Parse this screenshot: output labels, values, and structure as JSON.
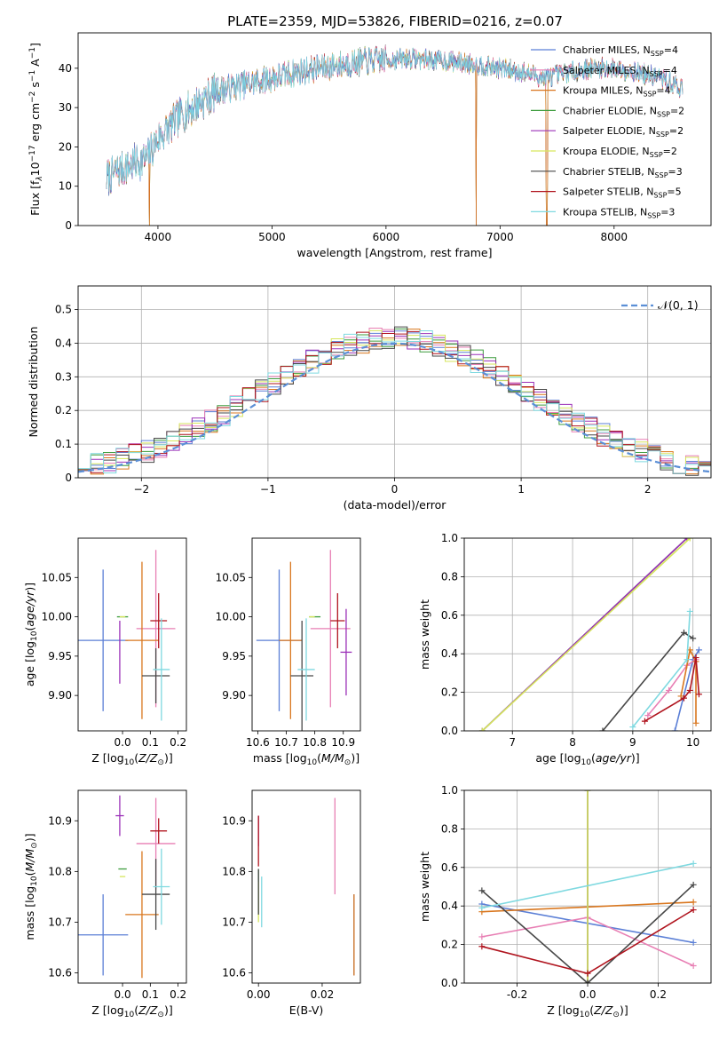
{
  "page_title": "PLATE=2359, MJD=53826, FIBERID=0216, z=0.07",
  "series_styles": [
    {
      "name": "Chabrier MILES, N_SSP=4",
      "base": "Chabrier MILES, N",
      "sub": "SSP",
      "tail": "=4",
      "color": "#5b7fd6"
    },
    {
      "name": "Salpeter MILES, N_SSP=4",
      "base": "Salpeter MILES, N",
      "sub": "SSP",
      "tail": "=4",
      "color": "#e87fb4"
    },
    {
      "name": "Kroupa MILES, N_SSP=4",
      "base": "Kroupa MILES, N",
      "sub": "SSP",
      "tail": "=4",
      "color": "#d9771f"
    },
    {
      "name": "Chabrier ELODIE, N_SSP=2",
      "base": "Chabrier ELODIE, N",
      "sub": "SSP",
      "tail": "=2",
      "color": "#3d9c3d"
    },
    {
      "name": "Salpeter ELODIE, N_SSP=2",
      "base": "Salpeter ELODIE, N",
      "sub": "SSP",
      "tail": "=2",
      "color": "#9b30b8"
    },
    {
      "name": "Kroupa ELODIE, N_SSP=2",
      "base": "Kroupa ELODIE, N",
      "sub": "SSP",
      "tail": "=2",
      "color": "#d6e65c"
    },
    {
      "name": "Chabrier STELIB, N_SSP=3",
      "base": "Chabrier STELIB, N",
      "sub": "SSP",
      "tail": "=3",
      "color": "#474747"
    },
    {
      "name": "Salpeter STELIB, N_SSP=5",
      "base": "Salpeter STELIB, N",
      "sub": "SSP",
      "tail": "=5",
      "color": "#b0141e"
    },
    {
      "name": "Kroupa STELIB, N_SSP=3",
      "base": "Kroupa STELIB, N",
      "sub": "SSP",
      "tail": "=3",
      "color": "#7fd9e0"
    }
  ],
  "chart_data": [
    {
      "id": "spectrum",
      "type": "line",
      "xlabel": "wavelength [Angstrom, rest frame]",
      "ylabel": "Flux [f_λ 10^-17 erg cm^-2 s^-1 A^-1]",
      "ylabel_parts": {
        "a": "Flux [f",
        "b": "λ",
        "c": "10",
        "d": "−17",
        "e": " erg cm",
        "f": "−2",
        "g": " s",
        "h": "−1",
        "i": " A",
        "j": "−1",
        "k": "]"
      },
      "xlim": [
        3300,
        8850
      ],
      "ylim": [
        0,
        49
      ],
      "xticks": [
        4000,
        5000,
        6000,
        7000,
        8000
      ],
      "yticks": [
        0,
        10,
        20,
        30,
        40
      ],
      "continuum_nodes": [
        [
          3550,
          12
        ],
        [
          3650,
          14
        ],
        [
          3800,
          16
        ],
        [
          3900,
          17
        ],
        [
          4000,
          22
        ],
        [
          4100,
          25
        ],
        [
          4200,
          28
        ],
        [
          4350,
          31
        ],
        [
          4500,
          34
        ],
        [
          4700,
          35.5
        ],
        [
          5000,
          37.5
        ],
        [
          5300,
          39.5
        ],
        [
          5600,
          41
        ],
        [
          5900,
          42
        ],
        [
          6200,
          42.5
        ],
        [
          6500,
          42
        ],
        [
          6800,
          41
        ],
        [
          7000,
          40
        ],
        [
          7200,
          39
        ],
        [
          7400,
          37.5
        ],
        [
          7600,
          39
        ],
        [
          7800,
          40
        ],
        [
          8000,
          40
        ],
        [
          8200,
          39
        ],
        [
          8400,
          37.5
        ],
        [
          8600,
          35
        ]
      ],
      "dips": [
        [
          6790,
          0,
          3
        ],
        [
          7410,
          0,
          6
        ],
        [
          3925,
          0,
          5
        ]
      ],
      "legend_position": "upper-right"
    },
    {
      "id": "residuals",
      "type": "histogram",
      "xlabel": "(data-model)/error",
      "ylabel": "Normed distribution",
      "xlim": [
        -2.5,
        2.5
      ],
      "ylim": [
        0,
        0.57
      ],
      "xticks": [
        -2,
        -1,
        0,
        1,
        2
      ],
      "yticks": [
        0,
        0.1,
        0.2,
        0.3,
        0.4,
        0.5
      ],
      "bin_width": 0.1,
      "reference_curve": {
        "label": "𝒩(0, 1)",
        "mean": 0,
        "sigma": 1
      },
      "legend_position": "upper-right",
      "grid": true
    },
    {
      "id": "age_vs_Z",
      "type": "errorbar",
      "xlabel": "Z [log10(Z/Z⊙)]",
      "ylabel": "age  [log10(age/yr)]",
      "xlim": [
        -0.16,
        0.23
      ],
      "ylim": [
        9.855,
        10.1
      ],
      "xticks": [
        0,
        0.1,
        0.2
      ],
      "yticks": [
        9.9,
        9.95,
        10.0,
        10.05
      ],
      "points": [
        {
          "x": -0.07,
          "y": 9.97,
          "xerr": 0.09,
          "yerr": 0.09,
          "series": 0
        },
        {
          "x": 0.12,
          "y": 9.985,
          "xerr": 0.07,
          "yerr": 0.1,
          "series": 1
        },
        {
          "x": 0.07,
          "y": 9.97,
          "xerr": 0.06,
          "yerr": 0.1,
          "series": 2
        },
        {
          "x": 0.0,
          "y": 10.0,
          "xerr": 0.02,
          "yerr": 0.0,
          "series": 3
        },
        {
          "x": -0.01,
          "y": 9.955,
          "xerr": 0.0,
          "yerr": 0.04,
          "series": 4
        },
        {
          "x": 0.0,
          "y": 10.0,
          "xerr": 0.01,
          "yerr": 0.0,
          "series": 5
        },
        {
          "x": 0.12,
          "y": 9.925,
          "xerr": 0.05,
          "yerr": 0.035,
          "series": 6
        },
        {
          "x": 0.13,
          "y": 9.995,
          "xerr": 0.03,
          "yerr": 0.035,
          "series": 7
        },
        {
          "x": 0.14,
          "y": 9.933,
          "xerr": 0.03,
          "yerr": 0.065,
          "series": 8
        }
      ]
    },
    {
      "id": "age_vs_mass",
      "type": "errorbar",
      "xlabel": "mass [log10(M/M⊙)]",
      "ylabel": "",
      "xlim": [
        10.58,
        10.96
      ],
      "ylim": [
        9.855,
        10.1
      ],
      "xticks": [
        10.6,
        10.7,
        10.8,
        10.9
      ],
      "yticks": [
        9.9,
        9.95,
        10.0,
        10.05
      ],
      "points": [
        {
          "x": 10.675,
          "y": 9.97,
          "xerr": 0.08,
          "yerr": 0.09,
          "series": 0
        },
        {
          "x": 10.855,
          "y": 9.985,
          "xerr": 0.07,
          "yerr": 0.1,
          "series": 1
        },
        {
          "x": 10.715,
          "y": 9.97,
          "xerr": 0.04,
          "yerr": 0.1,
          "series": 2
        },
        {
          "x": 10.8,
          "y": 10.0,
          "xerr": 0.02,
          "yerr": 0.0,
          "series": 3
        },
        {
          "x": 10.91,
          "y": 9.955,
          "xerr": 0.02,
          "yerr": 0.055,
          "series": 4
        },
        {
          "x": 10.79,
          "y": 10.0,
          "xerr": 0.01,
          "yerr": 0.0,
          "series": 5
        },
        {
          "x": 10.755,
          "y": 9.925,
          "xerr": 0.04,
          "yerr": 0.07,
          "series": 6
        },
        {
          "x": 10.88,
          "y": 9.995,
          "xerr": 0.025,
          "yerr": 0.035,
          "series": 7
        },
        {
          "x": 10.77,
          "y": 9.933,
          "xerr": 0.03,
          "yerr": 0.065,
          "series": 8
        }
      ]
    },
    {
      "id": "weight_vs_age",
      "type": "line",
      "xlabel": "age  [log10(age/yr)]",
      "ylabel": "mass weight",
      "xlim": [
        6.2,
        10.3
      ],
      "ylim": [
        0,
        1
      ],
      "xticks": [
        7,
        8,
        9,
        10
      ],
      "yticks": [
        0,
        0.2,
        0.4,
        0.6,
        0.8,
        1.0
      ],
      "series": [
        {
          "series": 0,
          "points": [
            [
              9.7,
              0.0
            ],
            [
              10.0,
              0.37
            ],
            [
              10.1,
              0.42
            ]
          ]
        },
        {
          "series": 1,
          "points": [
            [
              9.25,
              0.08
            ],
            [
              9.6,
              0.21
            ],
            [
              9.9,
              0.34
            ],
            [
              10.05,
              0.37
            ]
          ]
        },
        {
          "series": 2,
          "points": [
            [
              9.8,
              0.18
            ],
            [
              9.95,
              0.42
            ],
            [
              10.05,
              0.36
            ],
            [
              10.05,
              0.04
            ]
          ]
        },
        {
          "series": 3,
          "points": [
            [
              6.5,
              0.0
            ],
            [
              9.9,
              1.0
            ]
          ]
        },
        {
          "series": 4,
          "points": [
            [
              6.5,
              0.0
            ],
            [
              9.9,
              1.0
            ]
          ]
        },
        {
          "series": 5,
          "points": [
            [
              6.5,
              0.0
            ],
            [
              9.95,
              1.0
            ]
          ]
        },
        {
          "series": 6,
          "points": [
            [
              8.5,
              0.0
            ],
            [
              9.85,
              0.51
            ],
            [
              10.0,
              0.48
            ]
          ]
        },
        {
          "series": 7,
          "points": [
            [
              9.2,
              0.05
            ],
            [
              9.85,
              0.17
            ],
            [
              9.95,
              0.21
            ],
            [
              10.05,
              0.38
            ],
            [
              10.1,
              0.19
            ]
          ]
        },
        {
          "series": 8,
          "points": [
            [
              9.0,
              0.02
            ],
            [
              9.9,
              0.37
            ],
            [
              9.95,
              0.62
            ]
          ]
        }
      ],
      "grid": true
    },
    {
      "id": "mass_vs_Z",
      "type": "errorbar",
      "xlabel": "Z [log10(Z/Z⊙)]",
      "ylabel": "mass [log10(M/M⊙)]",
      "xlim": [
        -0.16,
        0.23
      ],
      "ylim": [
        10.58,
        10.96
      ],
      "xticks": [
        0,
        0.1,
        0.2
      ],
      "yticks": [
        10.6,
        10.7,
        10.8,
        10.9
      ],
      "points": [
        {
          "x": -0.07,
          "y": 10.675,
          "xerr": 0.09,
          "yerr": 0.08,
          "series": 0
        },
        {
          "x": 0.12,
          "y": 10.855,
          "xerr": 0.07,
          "yerr": 0.09,
          "series": 1
        },
        {
          "x": 0.07,
          "y": 10.715,
          "xerr": 0.06,
          "yerr": 0.125,
          "series": 2
        },
        {
          "x": 0.0,
          "y": 10.805,
          "xerr": 0.015,
          "yerr": 0.0,
          "series": 3
        },
        {
          "x": -0.01,
          "y": 10.91,
          "xerr": 0.015,
          "yerr": 0.04,
          "series": 4
        },
        {
          "x": 0.0,
          "y": 10.79,
          "xerr": 0.01,
          "yerr": 0.0,
          "series": 5
        },
        {
          "x": 0.12,
          "y": 10.755,
          "xerr": 0.05,
          "yerr": 0.07,
          "series": 6
        },
        {
          "x": 0.13,
          "y": 10.88,
          "xerr": 0.03,
          "yerr": 0.025,
          "series": 7
        },
        {
          "x": 0.14,
          "y": 10.77,
          "xerr": 0.03,
          "yerr": 0.075,
          "series": 8
        }
      ]
    },
    {
      "id": "mass_vs_ebv",
      "type": "errorbar",
      "xlabel": "E(B-V)",
      "ylabel": "",
      "xlim": [
        -0.002,
        0.032
      ],
      "ylim": [
        10.58,
        10.96
      ],
      "xticks": [
        0.0,
        0.02
      ],
      "yticks": [
        10.6,
        10.7,
        10.8,
        10.9
      ],
      "points": [
        {
          "x": 0.03,
          "y": 10.675,
          "xerr": 0,
          "yerr": 0.08,
          "series": 0
        },
        {
          "x": 0.024,
          "y": 10.85,
          "xerr": 0,
          "yerr": 0.095,
          "series": 1
        },
        {
          "x": 0.03,
          "y": 10.675,
          "xerr": 0,
          "yerr": 0.08,
          "series": 2
        },
        {
          "x": 0.0,
          "y": 10.76,
          "xerr": 0,
          "yerr": 0.045,
          "series": 3
        },
        {
          "x": 0.0,
          "y": 10.88,
          "xerr": 0,
          "yerr": 0.03,
          "series": 4
        },
        {
          "x": 0.0,
          "y": 10.74,
          "xerr": 0,
          "yerr": 0.04,
          "series": 5
        },
        {
          "x": 0.0,
          "y": 10.76,
          "xerr": 0,
          "yerr": 0.045,
          "series": 6
        },
        {
          "x": 0.0,
          "y": 10.86,
          "xerr": 0,
          "yerr": 0.05,
          "series": 7
        },
        {
          "x": 0.001,
          "y": 10.74,
          "xerr": 0,
          "yerr": 0.05,
          "series": 8
        }
      ]
    },
    {
      "id": "weight_vs_Z",
      "type": "line",
      "xlabel": "Z [log10(Z/Z⊙)]",
      "ylabel": "mass weight",
      "xlim": [
        -0.35,
        0.35
      ],
      "ylim": [
        0,
        1
      ],
      "xticks": [
        -0.2,
        0.0,
        0.2
      ],
      "yticks": [
        0,
        0.2,
        0.4,
        0.6,
        0.8,
        1.0
      ],
      "series": [
        {
          "series": 0,
          "points": [
            [
              -0.3,
              0.41
            ],
            [
              0.3,
              0.21
            ]
          ]
        },
        {
          "series": 1,
          "points": [
            [
              -0.3,
              0.24
            ],
            [
              0.0,
              0.34
            ],
            [
              0.3,
              0.09
            ]
          ]
        },
        {
          "series": 2,
          "points": [
            [
              -0.3,
              0.37
            ],
            [
              0.3,
              0.42
            ]
          ]
        },
        {
          "series": 3,
          "points": [
            [
              0.0,
              0.0
            ],
            [
              0.0,
              1.0
            ]
          ]
        },
        {
          "series": 4,
          "points": [
            [
              0.0,
              0.0
            ],
            [
              0.0,
              1.0
            ]
          ]
        },
        {
          "series": 5,
          "points": [
            [
              0.0,
              0.0
            ],
            [
              0.0,
              1.0
            ]
          ]
        },
        {
          "series": 6,
          "points": [
            [
              -0.3,
              0.48
            ],
            [
              0.0,
              0.0
            ],
            [
              0.3,
              0.51
            ]
          ]
        },
        {
          "series": 7,
          "points": [
            [
              -0.3,
              0.19
            ],
            [
              0.0,
              0.05
            ],
            [
              0.3,
              0.38
            ]
          ]
        },
        {
          "series": 8,
          "points": [
            [
              -0.3,
              0.39
            ],
            [
              0.3,
              0.62
            ]
          ]
        }
      ],
      "grid": true
    }
  ]
}
